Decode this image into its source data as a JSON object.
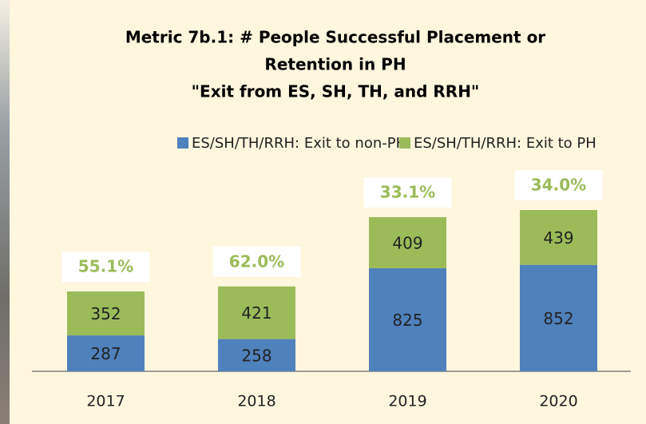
{
  "chart_data": {
    "type": "stacked_bar",
    "title": [
      "Metric 7b.1: # People Successful Placement or",
      "Retention in PH",
      "\"Exit from ES, SH, TH, and RRH\""
    ],
    "categories": [
      "2017",
      "2018",
      "2019",
      "2020"
    ],
    "series": [
      {
        "name": "ES/SH/TH/RRH: Exit to non-PH",
        "color": "#4f81bd",
        "values": [
          287,
          258,
          825,
          852
        ]
      },
      {
        "name": "ES/SH/TH/RRH: Exit to PH",
        "color": "#9bbb59",
        "values": [
          352,
          421,
          409,
          439
        ]
      }
    ],
    "annotations": [
      "55.1%",
      "62.0%",
      "33.1%",
      "34.0%"
    ],
    "annotation_color": "#9bbb59",
    "legend": "top"
  }
}
